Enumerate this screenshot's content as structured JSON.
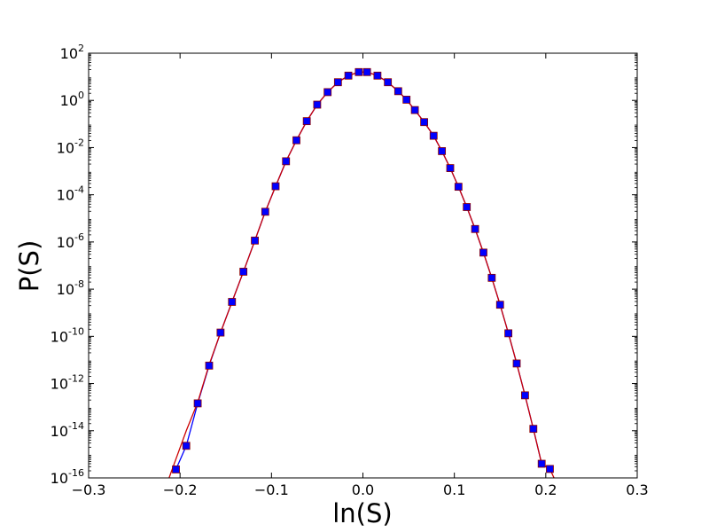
{
  "chart_data": {
    "type": "line",
    "xlabel": "ln(S)",
    "ylabel": "P(S)",
    "xlim": [
      -0.3,
      0.3
    ],
    "ylim_log10": [
      -16,
      2
    ],
    "yscale": "log",
    "grid": false,
    "x_ticks": [
      {
        "value": -0.3,
        "label": "−0.3"
      },
      {
        "value": -0.2,
        "label": "−0.2"
      },
      {
        "value": -0.1,
        "label": "−0.1"
      },
      {
        "value": 0.0,
        "label": "0.0"
      },
      {
        "value": 0.1,
        "label": "0.1"
      },
      {
        "value": 0.2,
        "label": "0.2"
      },
      {
        "value": 0.3,
        "label": "0.3"
      }
    ],
    "y_ticks": [
      {
        "exp": 2,
        "base": "10",
        "sup": "2"
      },
      {
        "exp": 0,
        "base": "10",
        "sup": "0"
      },
      {
        "exp": -2,
        "base": "10",
        "sup": "-2"
      },
      {
        "exp": -4,
        "base": "10",
        "sup": "-4"
      },
      {
        "exp": -6,
        "base": "10",
        "sup": "-6"
      },
      {
        "exp": -8,
        "base": "10",
        "sup": "-8"
      },
      {
        "exp": -10,
        "base": "10",
        "sup": "-10"
      },
      {
        "exp": -12,
        "base": "10",
        "sup": "-12"
      },
      {
        "exp": -14,
        "base": "10",
        "sup": "-14"
      },
      {
        "exp": -16,
        "base": "10",
        "sup": "-16"
      }
    ],
    "series": [
      {
        "style": "line-with-square-markers",
        "color": "#0000ff",
        "marker_color": "#0000ff",
        "marker_edge": "#8b0000",
        "x": [
          -0.2045,
          -0.1932,
          -0.1807,
          -0.1682,
          -0.1557,
          -0.1432,
          -0.1307,
          -0.1182,
          -0.1068,
          -0.0955,
          -0.0841,
          -0.0727,
          -0.0614,
          -0.05,
          -0.0386,
          -0.0273,
          -0.0159,
          -0.0045,
          0.0045,
          0.0159,
          0.0273,
          0.0386,
          0.0477,
          0.0568,
          0.067,
          0.0773,
          0.0864,
          0.0955,
          0.1045,
          0.1136,
          0.1227,
          0.1318,
          0.1409,
          0.15,
          0.1591,
          0.1682,
          0.1773,
          0.1864,
          0.1955,
          0.2045
        ],
        "y_log10": [
          -15.64,
          -14.64,
          -12.84,
          -11.24,
          -9.84,
          -8.54,
          -7.26,
          -5.94,
          -4.72,
          -3.64,
          -2.58,
          -1.69,
          -0.88,
          -0.18,
          0.35,
          0.77,
          1.05,
          1.2,
          1.2,
          1.05,
          0.77,
          0.39,
          0.03,
          -0.41,
          -0.92,
          -1.5,
          -2.15,
          -2.87,
          -3.66,
          -4.52,
          -5.45,
          -6.45,
          -7.52,
          -8.66,
          -9.87,
          -11.15,
          -12.5,
          -13.92,
          -15.4,
          -15.62
        ]
      },
      {
        "style": "line",
        "color": "#cc0000",
        "x": [
          -0.212,
          -0.2045,
          -0.1932,
          -0.1807,
          -0.1682,
          -0.1557,
          -0.1432,
          -0.1307,
          -0.1182,
          -0.1068,
          -0.0955,
          -0.0841,
          -0.0727,
          -0.0614,
          -0.05,
          -0.0386,
          -0.0273,
          -0.0159,
          -0.0045,
          0.0045,
          0.0159,
          0.0273,
          0.0386,
          0.0477,
          0.0568,
          0.067,
          0.0773,
          0.0864,
          0.0955,
          0.1045,
          0.1136,
          0.1227,
          0.1318,
          0.1409,
          0.15,
          0.1591,
          0.1682,
          0.1773,
          0.1864,
          0.1955,
          0.2045,
          0.209
        ],
        "y_log10": [
          -16.0,
          -15.2,
          -14.0,
          -12.8,
          -11.2,
          -9.84,
          -8.54,
          -7.26,
          -5.94,
          -4.72,
          -3.64,
          -2.58,
          -1.69,
          -0.88,
          -0.18,
          0.35,
          0.77,
          1.05,
          1.2,
          1.2,
          1.05,
          0.77,
          0.39,
          0.03,
          -0.41,
          -0.92,
          -1.5,
          -2.15,
          -2.87,
          -3.66,
          -4.52,
          -5.45,
          -6.45,
          -7.52,
          -8.66,
          -9.87,
          -11.15,
          -12.5,
          -13.92,
          -15.4,
          -15.62,
          -16.0
        ]
      }
    ]
  }
}
